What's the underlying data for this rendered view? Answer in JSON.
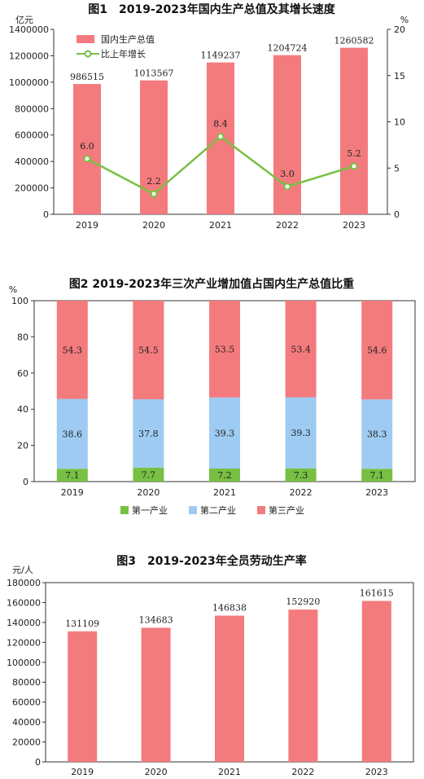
{
  "chart_data": [
    {
      "type": "bar",
      "title": "图1　2019-2023年国内生产总值及其增长速度",
      "categories": [
        "2019",
        "2020",
        "2021",
        "2022",
        "2023"
      ],
      "y_unit_left": "亿元",
      "y_unit_right": "%",
      "ylim": [
        0,
        1400000
      ],
      "ylim_right": [
        0,
        20
      ],
      "y_ticks": [
        "0",
        "200000",
        "400000",
        "600000",
        "800000",
        "1000000",
        "1200000",
        "1400000"
      ],
      "y_ticks_right": [
        "0",
        "5",
        "10",
        "15",
        "20"
      ],
      "series": [
        {
          "name": "国内生产总值",
          "type": "bar",
          "color": "#f47b7d",
          "values": [
            986515,
            1013567,
            1149237,
            1204724,
            1260582
          ],
          "labels": [
            "986515",
            "1013567",
            "1149237",
            "1204724",
            "1260582"
          ]
        },
        {
          "name": "比上年增长",
          "type": "line",
          "axis": "right",
          "color": "#77c043",
          "values": [
            6.0,
            2.2,
            8.4,
            3.0,
            5.2
          ],
          "labels": [
            "6.0",
            "2.2",
            "8.4",
            "3.0",
            "5.2"
          ]
        }
      ],
      "legend_position": "top-left",
      "grid": false
    },
    {
      "type": "stacked_bar",
      "title": "图2 2019-2023年三次产业增加值占国内生产总值比重",
      "categories": [
        "2019",
        "2020",
        "2021",
        "2022",
        "2023"
      ],
      "y_unit": "%",
      "ylim": [
        0,
        100
      ],
      "y_ticks": [
        "0",
        "20",
        "40",
        "60",
        "80",
        "100"
      ],
      "series": [
        {
          "name": "第一产业",
          "color": "#77c043",
          "values": [
            7.1,
            7.7,
            7.2,
            7.3,
            7.1
          ],
          "labels": [
            "7.1",
            "7.7",
            "7.2",
            "7.3",
            "7.1"
          ]
        },
        {
          "name": "第二产业",
          "color": "#9ecbf2",
          "values": [
            38.6,
            37.8,
            39.3,
            39.3,
            38.3
          ],
          "labels": [
            "38.6",
            "37.8",
            "39.3",
            "39.3",
            "38.3"
          ]
        },
        {
          "name": "第三产业",
          "color": "#f47b7d",
          "values": [
            54.3,
            54.5,
            53.5,
            53.4,
            54.6
          ],
          "labels": [
            "54.3",
            "54.5",
            "53.5",
            "53.4",
            "54.6"
          ]
        }
      ],
      "legend_position": "bottom",
      "grid": false
    },
    {
      "type": "bar",
      "title": "图3　2019-2023年全员劳动生产率",
      "categories": [
        "2019",
        "2020",
        "2021",
        "2022",
        "2023"
      ],
      "y_unit": "元/人",
      "ylim": [
        0,
        180000
      ],
      "y_ticks": [
        "0",
        "20000",
        "40000",
        "60000",
        "80000",
        "100000",
        "120000",
        "140000",
        "160000",
        "180000"
      ],
      "series": [
        {
          "name": "全员劳动生产率",
          "color": "#f47b7d",
          "values": [
            131109,
            134683,
            146838,
            152920,
            161615
          ],
          "labels": [
            "131109",
            "134683",
            "146838",
            "152920",
            "161615"
          ]
        }
      ],
      "grid": false
    }
  ]
}
